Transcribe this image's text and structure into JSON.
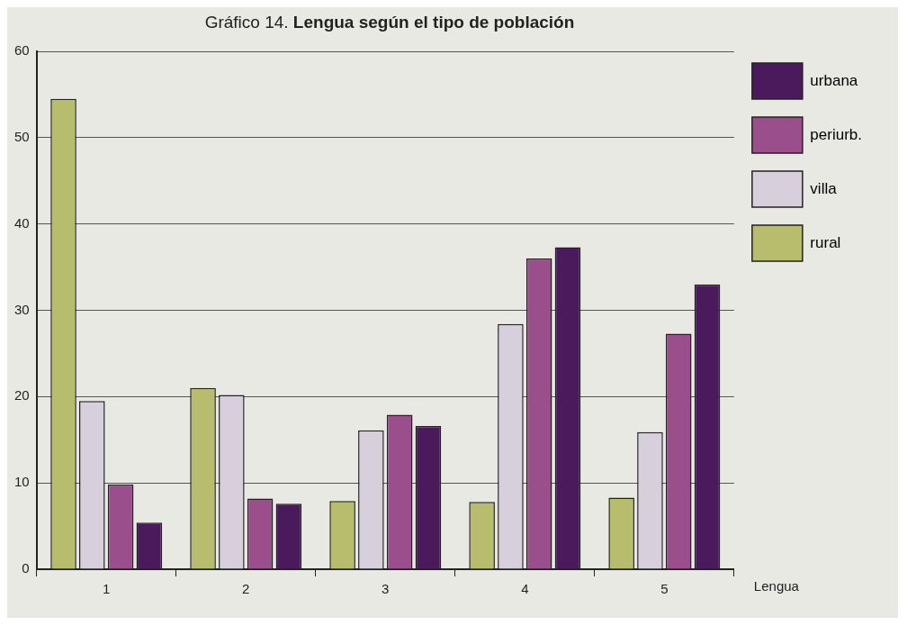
{
  "chart_data": {
    "type": "bar",
    "title": "Gráfico 14. Lengua según el tipo de población",
    "xlabel": "Lengua",
    "categories": [
      "1",
      "2",
      "3",
      "4",
      "5"
    ],
    "series": [
      {
        "name": "rural",
        "color": "#b8bd6e",
        "values": [
          54.5,
          21,
          7.9,
          7.8,
          8.3
        ]
      },
      {
        "name": "villa",
        "color": "#d8cfdc",
        "values": [
          19.5,
          20.2,
          16.1,
          28.4,
          15.9
        ]
      },
      {
        "name": "periurb.",
        "color": "#9a4f8c",
        "values": [
          9.8,
          8.2,
          17.9,
          36,
          27.3
        ]
      },
      {
        "name": "urbana",
        "color": "#4a1a5c",
        "values": [
          5.4,
          7.6,
          16.6,
          37.3,
          33
        ]
      }
    ],
    "ylim": [
      0,
      60
    ],
    "yticks": [
      0,
      10,
      20,
      30,
      40,
      50,
      60
    ],
    "grid": "y",
    "legend": "right"
  }
}
